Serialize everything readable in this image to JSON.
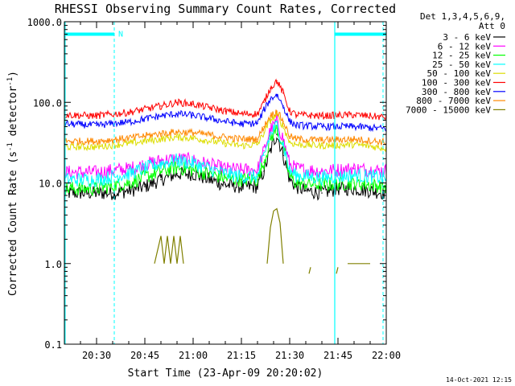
{
  "chart_data": {
    "type": "line",
    "title": "RHESSI Observing Summary Count Rates, Corrected",
    "xlabel": "Start Time (23-Apr-09 20:20:02)",
    "ylabel": "Corrected Count Rate (s⁻¹ detector⁻¹)",
    "ylabel_parts": {
      "main": "Corrected Count Rate (s",
      "exp1": "-1",
      "mid": " detector",
      "exp2": "-1",
      "end": ")"
    },
    "yscale": "log",
    "ylim": [
      0.1,
      1000
    ],
    "xlim_minutes": [
      0,
      100
    ],
    "x_start_label": "20:20:02",
    "x_tick_minutes": [
      10,
      25,
      40,
      55,
      70,
      85,
      100
    ],
    "x_tick_labels": [
      "20:30",
      "20:45",
      "21:00",
      "21:15",
      "21:30",
      "21:45",
      "22:00"
    ],
    "y_tick_values": [
      0.1,
      1,
      10,
      100,
      1000
    ],
    "y_tick_labels": [
      "0.1",
      "1.0",
      "10.0",
      "100.0",
      "1000.0"
    ],
    "legend_header": [
      "Det 1,3,4,5,6,9,",
      "Att 0"
    ],
    "legend_position": "top-right-outside",
    "series": [
      {
        "name": "3 - 6 keV",
        "color": "#000000",
        "x": [
          0,
          5,
          10,
          15,
          20,
          25,
          30,
          35,
          40,
          45,
          50,
          55,
          60,
          62,
          64,
          66,
          68,
          70,
          72,
          75,
          80,
          85,
          90,
          95,
          100
        ],
        "y": [
          7.5,
          7.5,
          7.5,
          7.5,
          8,
          9,
          11,
          13,
          13,
          11,
          9.5,
          9,
          9,
          14,
          25,
          40,
          22,
          11,
          9,
          8,
          7.5,
          8.5,
          8.5,
          8,
          7.5
        ]
      },
      {
        "name": "6 - 12 keV",
        "color": "#ff00ff",
        "x": [
          0,
          10,
          20,
          30,
          35,
          40,
          50,
          55,
          60,
          62,
          64,
          66,
          68,
          70,
          72,
          80,
          90,
          100
        ],
        "y": [
          13.5,
          13.5,
          15,
          19,
          20,
          19,
          15,
          14.5,
          14.5,
          25,
          45,
          58,
          35,
          17,
          15,
          14,
          15,
          14
        ]
      },
      {
        "name": "12 - 25 keV",
        "color": "#00ff00",
        "x": [
          0,
          10,
          20,
          30,
          35,
          40,
          50,
          55,
          60,
          62,
          64,
          66,
          68,
          70,
          72,
          80,
          90,
          100
        ],
        "y": [
          8.5,
          8.5,
          10,
          14,
          15.5,
          14.5,
          11.5,
          11,
          11,
          18,
          35,
          48,
          28,
          12,
          10,
          9.5,
          10,
          9
        ]
      },
      {
        "name": "25 - 50 keV",
        "color": "#00ffff",
        "x": [
          0,
          10,
          20,
          30,
          35,
          40,
          50,
          55,
          60,
          62,
          64,
          66,
          68,
          70,
          72,
          80,
          90,
          100
        ],
        "y": [
          11,
          11,
          13,
          17.5,
          19,
          17.5,
          13,
          12,
          12,
          22,
          40,
          52,
          30,
          14,
          12.5,
          11.5,
          12.5,
          11.5
        ]
      },
      {
        "name": "50 - 100 keV",
        "color": "#dddd00",
        "x": [
          0,
          10,
          20,
          30,
          35,
          40,
          50,
          55,
          60,
          62,
          64,
          66,
          68,
          70,
          72,
          80,
          90,
          100
        ],
        "y": [
          28,
          28,
          31,
          35,
          37,
          36,
          31,
          29,
          30,
          42,
          60,
          70,
          50,
          32,
          30,
          29,
          30,
          27
        ]
      },
      {
        "name": "100 - 300 keV",
        "color": "#ff0000",
        "x": [
          0,
          10,
          20,
          30,
          35,
          40,
          50,
          55,
          60,
          62,
          64,
          66,
          68,
          70,
          72,
          80,
          90,
          100
        ],
        "y": [
          70,
          68,
          75,
          90,
          100,
          95,
          78,
          72,
          72,
          100,
          150,
          185,
          130,
          78,
          70,
          68,
          70,
          65
        ]
      },
      {
        "name": "300 - 800 keV",
        "color": "#0000ff",
        "x": [
          0,
          10,
          20,
          30,
          35,
          40,
          50,
          55,
          60,
          62,
          64,
          66,
          68,
          70,
          72,
          80,
          90,
          100
        ],
        "y": [
          54,
          52,
          57,
          68,
          72,
          69,
          58,
          54,
          55,
          80,
          110,
          125,
          90,
          58,
          52,
          50,
          50,
          47
        ]
      },
      {
        "name": "800 - 7000 keV",
        "color": "#ff8800",
        "x": [
          0,
          10,
          20,
          30,
          35,
          40,
          50,
          55,
          60,
          62,
          64,
          66,
          68,
          70,
          72,
          80,
          90,
          100
        ],
        "y": [
          33,
          33,
          36,
          41,
          43,
          42,
          37,
          35,
          35,
          50,
          68,
          78,
          58,
          38,
          35,
          34,
          35,
          32
        ]
      },
      {
        "name": "7000 - 15000 keV",
        "color": "#808000",
        "segments": [
          {
            "x": [
              28,
              30,
              31,
              32,
              33,
              34,
              35,
              36,
              37
            ],
            "y": [
              1,
              2.2,
              1,
              2.2,
              1,
              2.2,
              1,
              2.2,
              1
            ]
          },
          {
            "x": [
              63,
              64,
              65,
              66,
              67,
              68
            ],
            "y": [
              1,
              2.8,
              4.5,
              4.8,
              3.2,
              1
            ]
          },
          {
            "x": [
              76,
              76.5
            ],
            "y": [
              0.75,
              0.9
            ]
          },
          {
            "x": [
              84.5,
              85
            ],
            "y": [
              0.75,
              0.9
            ]
          },
          {
            "x": [
              88,
              95
            ],
            "y": [
              1,
              1
            ]
          }
        ]
      }
    ],
    "markers": {
      "flag_label": "N",
      "eclipse_bars": [
        [
          0,
          15.5
        ],
        [
          84,
          100
        ]
      ],
      "eclipse_level": 700,
      "dashed_lines_min": [
        15.5,
        99
      ],
      "solid_lines_min": [
        84
      ]
    }
  },
  "footer": {
    "timestamp": "14-Oct-2021 12:15"
  }
}
